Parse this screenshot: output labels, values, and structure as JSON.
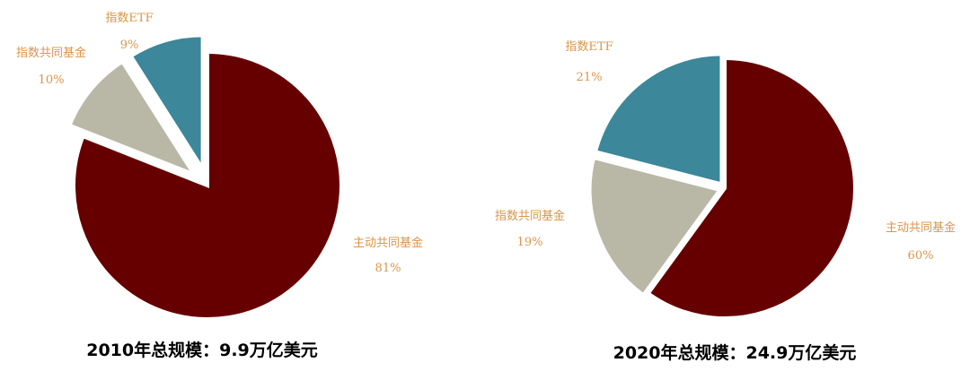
{
  "chart_data": [
    {
      "type": "pie",
      "title": "2010年总规模：9.9万亿美元",
      "slices": [
        {
          "name": "主动共同基金",
          "value": 81,
          "label": "81%",
          "color": "#660000"
        },
        {
          "name": "指数共同基金",
          "value": 10,
          "label": "10%",
          "color": "#b9b8a6"
        },
        {
          "name": "指数ETF",
          "value": 9,
          "label": "9%",
          "color": "#3c879a"
        }
      ]
    },
    {
      "type": "pie",
      "title": "2020年总规模：24.9万亿美元",
      "slices": [
        {
          "name": "主动共同基金",
          "value": 60,
          "label": "60%",
          "color": "#660000"
        },
        {
          "name": "指数共同基金",
          "value": 19,
          "label": "19%",
          "color": "#b9b8a6"
        },
        {
          "name": "指数ETF",
          "value": 21,
          "label": "21%",
          "color": "#3c879a"
        }
      ]
    }
  ]
}
